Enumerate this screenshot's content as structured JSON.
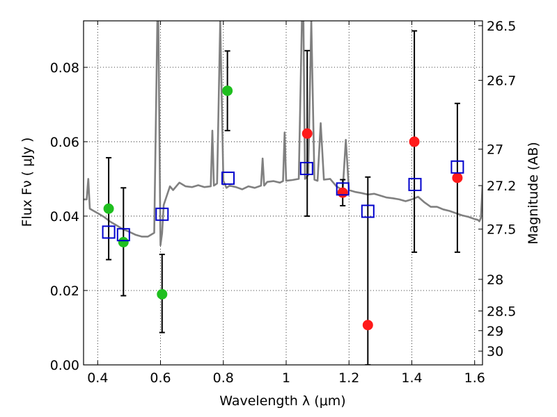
{
  "chart_data": {
    "type": "scatter",
    "xlabel": "Wavelength  λ (μm)",
    "ylabel": "Flux  Fν  ( μJy )",
    "y2label": "Magnitude (AB)",
    "xlim": [
      0.355,
      1.625
    ],
    "ylim": [
      0.0,
      0.0925
    ],
    "grid": true,
    "x_ticks": [
      0.4,
      0.6,
      0.8,
      1.0,
      1.2,
      1.4,
      1.6
    ],
    "x_tick_labels": [
      "0.4",
      "0.6",
      "0.8",
      "1",
      "1.2",
      "1.4",
      "1.6"
    ],
    "y_ticks": [
      0.0,
      0.02,
      0.04,
      0.06,
      0.08
    ],
    "y_tick_labels": [
      "0.00",
      "0.02",
      "0.04",
      "0.06",
      "0.08"
    ],
    "y2_ticks": [
      {
        "label": "26.5",
        "flux": 0.0912
      },
      {
        "label": "26.7",
        "flux": 0.0765
      },
      {
        "label": "27",
        "flux": 0.058
      },
      {
        "label": "27.2",
        "flux": 0.0482
      },
      {
        "label": "27.5",
        "flux": 0.0365
      },
      {
        "label": "28",
        "flux": 0.023
      },
      {
        "label": "28.5",
        "flux": 0.0145
      },
      {
        "label": "29",
        "flux": 0.0092
      },
      {
        "label": "30",
        "flux": 0.0037
      }
    ],
    "colors": {
      "spectrum": "#808080",
      "green": "#1fbf1f",
      "red": "#ff1a1a",
      "model": "#0000cc",
      "errorbar": "#000000"
    },
    "spectrum": {
      "x": [
        0.355,
        0.365,
        0.37,
        0.375,
        0.385,
        0.4,
        0.42,
        0.44,
        0.46,
        0.48,
        0.5,
        0.52,
        0.54,
        0.56,
        0.58,
        0.59,
        0.593,
        0.6,
        0.605,
        0.61,
        0.62,
        0.63,
        0.64,
        0.66,
        0.68,
        0.7,
        0.72,
        0.74,
        0.76,
        0.765,
        0.77,
        0.78,
        0.79,
        0.8,
        0.81,
        0.82,
        0.84,
        0.86,
        0.88,
        0.9,
        0.92,
        0.925,
        0.93,
        0.94,
        0.96,
        0.98,
        0.99,
        0.995,
        1.0,
        1.02,
        1.04,
        1.05,
        1.055,
        1.06,
        1.07,
        1.08,
        1.09,
        1.1,
        1.11,
        1.12,
        1.14,
        1.16,
        1.18,
        1.19,
        1.2,
        1.22,
        1.24,
        1.26,
        1.28,
        1.3,
        1.32,
        1.34,
        1.36,
        1.38,
        1.4,
        1.42,
        1.44,
        1.46,
        1.48,
        1.5,
        1.52,
        1.54,
        1.56,
        1.58,
        1.6,
        1.61,
        1.615,
        1.62,
        1.625
      ],
      "y": [
        0.0445,
        0.0445,
        0.05,
        0.042,
        0.0415,
        0.0408,
        0.0398,
        0.0385,
        0.0375,
        0.0365,
        0.0358,
        0.035,
        0.0345,
        0.0345,
        0.0355,
        0.0925,
        0.0925,
        0.0322,
        0.0354,
        0.043,
        0.0455,
        0.048,
        0.047,
        0.049,
        0.048,
        0.0478,
        0.0483,
        0.0478,
        0.048,
        0.063,
        0.0482,
        0.0488,
        0.0925,
        0.0495,
        0.0476,
        0.0482,
        0.0478,
        0.0472,
        0.048,
        0.0476,
        0.0482,
        0.0555,
        0.0482,
        0.0492,
        0.0494,
        0.049,
        0.0494,
        0.0625,
        0.0495,
        0.0497,
        0.05,
        0.0925,
        0.0925,
        0.05,
        0.051,
        0.0925,
        0.0498,
        0.0495,
        0.065,
        0.0498,
        0.05,
        0.048,
        0.047,
        0.0605,
        0.047,
        0.0465,
        0.0462,
        0.0458,
        0.046,
        0.0455,
        0.045,
        0.0448,
        0.0445,
        0.044,
        0.0445,
        0.0452,
        0.0437,
        0.0425,
        0.0425,
        0.0418,
        0.0414,
        0.0408,
        0.0402,
        0.0398,
        0.0392,
        0.039,
        0.0386,
        0.0395,
        0.048
      ]
    },
    "series": [
      {
        "color": "green",
        "marker": "circle",
        "x": [
          0.435,
          0.482,
          0.605,
          0.813
        ],
        "y": [
          0.042,
          0.033,
          0.019,
          0.0737
        ],
        "err_low": [
          0.0283,
          0.0186,
          0.0087,
          0.063
        ],
        "err_high": [
          0.0557,
          0.0476,
          0.0297,
          0.0844
        ]
      },
      {
        "color": "red",
        "marker": "circle",
        "x": [
          1.067,
          1.18,
          1.26,
          1.408,
          1.545
        ],
        "y": [
          0.0622,
          0.0463,
          0.0107,
          0.06,
          0.0503
        ],
        "err_low": [
          0.04,
          0.0428,
          0.0,
          0.0303,
          0.0303
        ],
        "err_high": [
          0.0845,
          0.0498,
          0.0505,
          0.0898,
          0.0703
        ]
      },
      {
        "color": "model",
        "marker": "open-square",
        "x": [
          0.435,
          0.482,
          0.605,
          0.815,
          1.065,
          1.18,
          1.26,
          1.41,
          1.545
        ],
        "y": [
          0.0357,
          0.035,
          0.0405,
          0.0502,
          0.0528,
          0.0473,
          0.0413,
          0.0485,
          0.0532
        ]
      }
    ]
  }
}
